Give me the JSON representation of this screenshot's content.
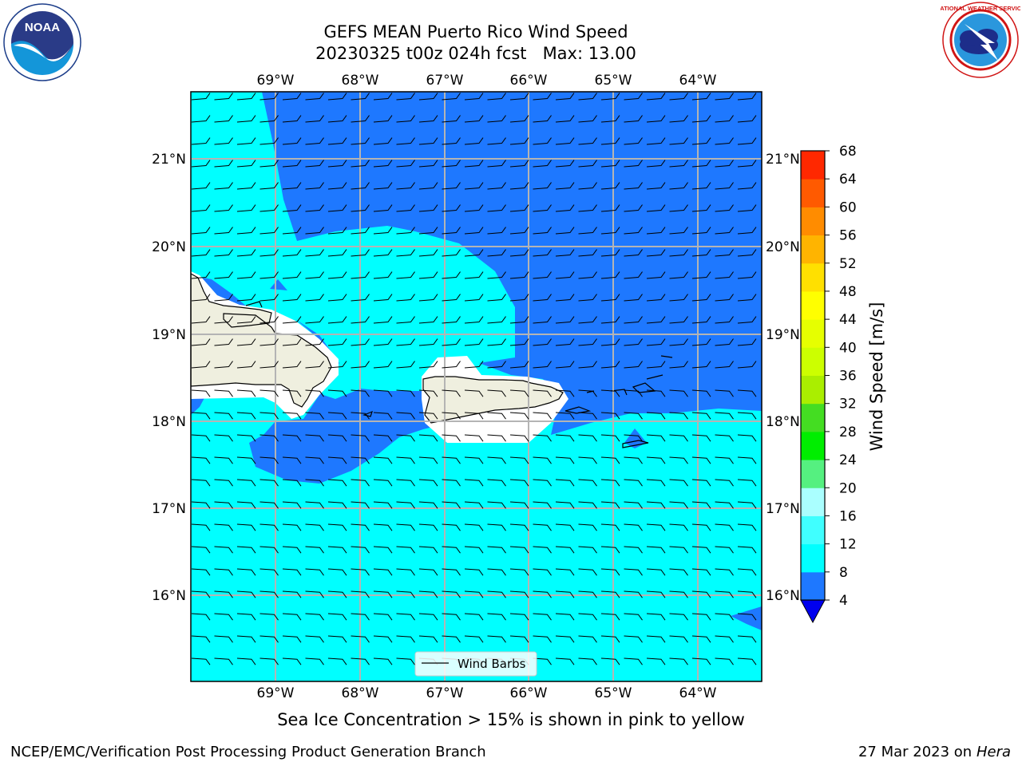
{
  "header": {
    "title_line1": "GEFS MEAN Puerto Rico Wind Speed",
    "title_line2": "20230325 t00z 024h fcst   Max: 13.00"
  },
  "logos": {
    "left": "NOAA",
    "left_ring_text": "NATIONAL OCEANIC AND ATMOSPHERIC ADMINISTRATION · U.S. DEPARTMENT OF COMMERCE",
    "right_ring_text": "NATIONAL WEATHER SERVICE"
  },
  "map": {
    "lon_labels": [
      "69°W",
      "68°W",
      "67°W",
      "66°W",
      "65°W",
      "64°W"
    ],
    "lat_labels": [
      "21°N",
      "20°N",
      "19°N",
      "18°N",
      "17°N",
      "16°N"
    ],
    "legend_label": "Wind Barbs",
    "colors": {
      "ocean_low": "#00ffff",
      "ocean_high": "#1e78ff",
      "land": "#efefdf",
      "ice": "#ffffff"
    }
  },
  "colorbar": {
    "label": "Wind Speed [m/s]",
    "ticks": [
      "4",
      "8",
      "12",
      "16",
      "20",
      "24",
      "28",
      "32",
      "36",
      "40",
      "44",
      "48",
      "52",
      "56",
      "60",
      "64",
      "68"
    ],
    "colors": [
      "#1e78ff",
      "#00ffff",
      "#40ffff",
      "#aaffff",
      "#55f080",
      "#00ee00",
      "#44dd22",
      "#aaee00",
      "#ccff00",
      "#e6ff00",
      "#ffff00",
      "#ffe000",
      "#ffb400",
      "#ff8c00",
      "#ff5a00",
      "#ff2800",
      "#ff0000"
    ],
    "extend_color": "#0000ee"
  },
  "footer": {
    "note": "Sea Ice Concentration > 15% is shown in pink to yellow",
    "left": "NCEP/EMC/Verification Post Processing Product Generation Branch",
    "date": "27 Mar 2023 on",
    "host": "Hera"
  }
}
